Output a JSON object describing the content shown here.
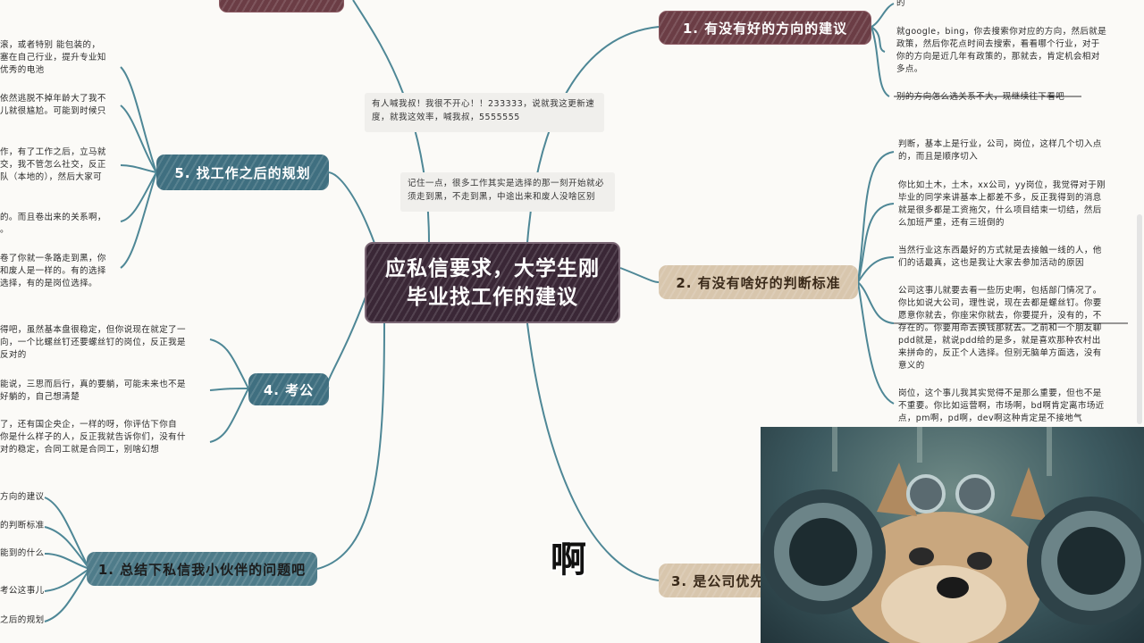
{
  "center": {
    "title_line1": "应私信要求，大学生刚",
    "title_line2": "毕业找工作的建议"
  },
  "branches": {
    "b1": "1. 有没有好的方向的建议",
    "b2": "2. 有没有啥好的判断标准",
    "b3": "3. 是公司优先",
    "b4": "4. 考公",
    "b5": "5. 找工作之后的规划",
    "b_summary": "1. 总结下私信我小伙伴的问题吧"
  },
  "notes": {
    "note1": "有人喊我叔！我很不开心！！233333，说就我这更新速度，就我这效率，喊我叔，5555555",
    "note2": "记住一点，很多工作其实是选择的那一刻开始就必须走到黑，不走到黑，中途出来和废人没啥区别"
  },
  "right_texts": {
    "r1_0": "的",
    "r1_1": "就google，bing，你去搜索你对应的方向，然后就是\n政策，然后你花点时间去搜索，看看哪个行业，对于\n你的方向是近几年有政策的，那就去，肯定机会相对\n多点。",
    "r1_2": "别的方向怎么选关系不大，现继续往下看吧",
    "r2_1": "判断，基本上是行业，公司，岗位，这样几个切入点\n的，而且是顺序切入",
    "r2_2": "你比如土木，土木，xx公司，yy岗位，我觉得对于刚\n毕业的同学来讲基本上都差不多，反正我得到的消息\n就是很多都是工资拖欠，什么项目结束一切结，然后\n么加班严重，还有三班倒的",
    "r2_3": "当然行业这东西最好的方式就是去接触一线的人，他\n们的话最真，这也是我让大家去参加活动的原因",
    "r2_4": "公司这事儿就要去看一些历史啊，包括部门情况了。\n你比如说大公司，理性说，现在去都是螺丝钉。你要\n愿意你就去，你座宋你就去，你要提升，没有的，不\n存在的。你要用命去换钱那就去。之前和一个朋友聊\npdd就是，就说pdd给的是多，就是喜欢那种农村出\n来拼命的，反正个人选择。但别无脑单方面选，没有\n意义的",
    "r2_5": "岗位，这个事儿我其实觉得不是那么重要，但也不是\n不重要。你比如运营啊，市场啊，bd啊肯定离市场近\n点，pm啊，pd啊，dev啊这种肯定是不接地气"
  },
  "left_texts": {
    "l5_1": "滚，或者特别 能包装的，\n塞在自己行业，提升专业知\n优秀的电池",
    "l5_2": "依然逃脱不掉年龄大了我不\n儿就很尴尬。可能到时候只",
    "l5_3": "作，有了工作之后，立马就\n交，我不管怎么社交，反正\n队（本地的），然后大家可",
    "l5_4": "的。而且卷出来的关系啊，\n。",
    "l5_5": "卷了你就一条路走到黑，你\n和废人是一样的。有的选择\n选择，有的是岗位选择。",
    "l4_1": "得吧，虽然基本盘很稳定，但你说现在就定了一\n向，一个比螺丝钉还要螺丝钉的岗位，反正我是\n反对的",
    "l4_2": "能说，三思而后行，真的要躺，可能未来也不是\n好躺的，自己想清楚",
    "l4_3": "了，还有国企央企，一样的呀，你评估下你自\n你是什么样子的人，反正我就告诉你们，没有什\n对的稳定，合同工就是合同工，别啥幻想",
    "ls_1": "方向的建议",
    "ls_2": "的判断标准",
    "ls_3": "能到的什么",
    "ls_4": "考公这事儿",
    "ls_5": "之后的规划"
  },
  "subtitle": "啊",
  "colors": {
    "center": "#3a2736",
    "branch1": "#6b3d45",
    "branch2": "#d8c6ad",
    "teal": "#3f6f80",
    "line": "#4e8796"
  }
}
